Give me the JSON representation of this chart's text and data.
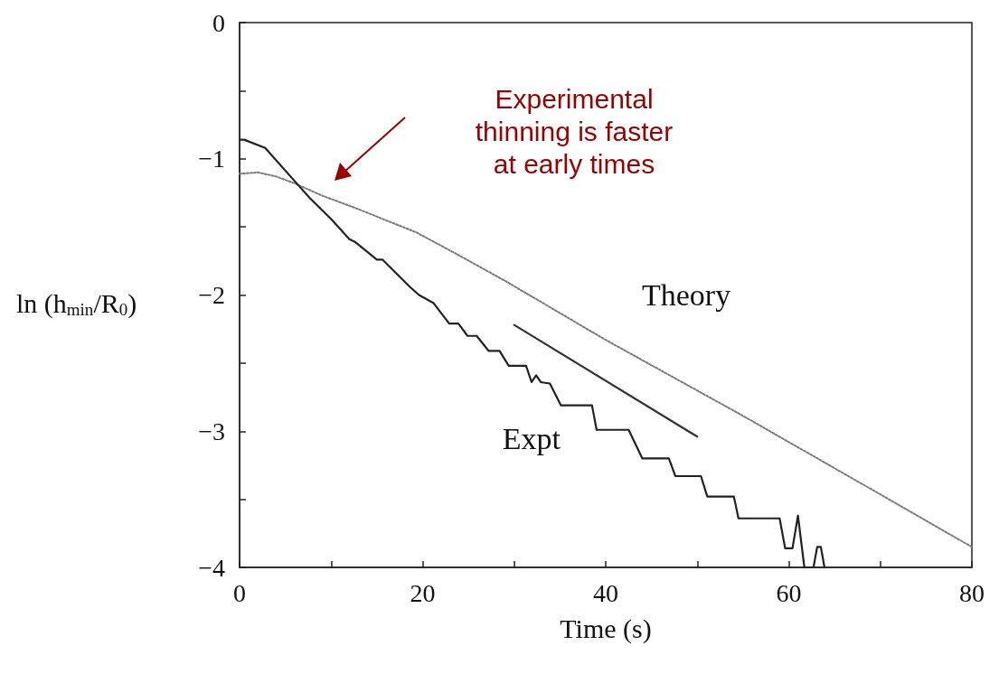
{
  "chart_data": {
    "type": "line",
    "xlabel": "Time (s)",
    "ylabel": "ln (h$_{min}$/R$_{0}$)",
    "xlim": [
      0,
      80
    ],
    "ylim": [
      -4,
      0
    ],
    "xticks": [
      0,
      {
        "value": 10,
        "label": null
      },
      20,
      {
        "value": 30,
        "label": null
      },
      40,
      {
        "value": 50,
        "label": null
      },
      60,
      {
        "value": 70,
        "label": null
      },
      80
    ],
    "yticks": [
      -4,
      {
        "value": -3.5,
        "label": null
      },
      -3,
      {
        "value": -2.5,
        "label": null
      },
      -2,
      {
        "value": -1.5,
        "label": null
      },
      -1,
      {
        "value": -0.5,
        "label": null
      },
      0
    ],
    "grid": false,
    "marker": "none",
    "series": [
      {
        "name": "Theory",
        "color": "#7a7a7a",
        "line_style": "dotted",
        "x": [
          0,
          2,
          4,
          6,
          9,
          12.6,
          19.3,
          24,
          29.1,
          40,
          54.8,
          66,
          80
        ],
        "values": [
          -1.11,
          -1.1,
          -1.13,
          -1.18,
          -1.27,
          -1.36,
          -1.54,
          -1.71,
          -1.9,
          -2.33,
          -2.88,
          -3.31,
          -3.85
        ]
      },
      {
        "name": "Expt",
        "color": "#222222",
        "line_style": "solid",
        "x": [
          0,
          0.5,
          2.8,
          6.1,
          7.7,
          10.1,
          12,
          12.6,
          15,
          15.6,
          18.6,
          19.6,
          21.2,
          22.9,
          23.9,
          24.9,
          25.9,
          27.2,
          28.4,
          29.4,
          31.3,
          31.9,
          32.4,
          32.9,
          33.9,
          35.1,
          38.5,
          39,
          42.5,
          43,
          44,
          46.9,
          47.6,
          50.4,
          51.1,
          54,
          54.5,
          59,
          59.6,
          60.4,
          61,
          61.7,
          62.7,
          63.1,
          63.5,
          63.9
        ],
        "values": [
          -0.86,
          -0.86,
          -0.92,
          -1.17,
          -1.29,
          -1.45,
          -1.59,
          -1.61,
          -1.74,
          -1.74,
          -1.94,
          -2.0,
          -2.06,
          -2.21,
          -2.21,
          -2.3,
          -2.3,
          -2.41,
          -2.41,
          -2.52,
          -2.52,
          -2.64,
          -2.59,
          -2.64,
          -2.65,
          -2.81,
          -2.81,
          -2.99,
          -2.99,
          -3.06,
          -3.2,
          -3.2,
          -3.33,
          -3.33,
          -3.48,
          -3.48,
          -3.64,
          -3.64,
          -3.86,
          -3.86,
          -3.62,
          -4,
          -4,
          -3.85,
          -3.85,
          -4
        ]
      },
      {
        "color": "#333333",
        "line_style": "solid",
        "x": [
          30,
          50
        ],
        "values": [
          -2.22,
          -3.04
        ]
      }
    ],
    "annotations": [
      "Experimental\nthinning is faster\nat early times"
    ]
  }
}
